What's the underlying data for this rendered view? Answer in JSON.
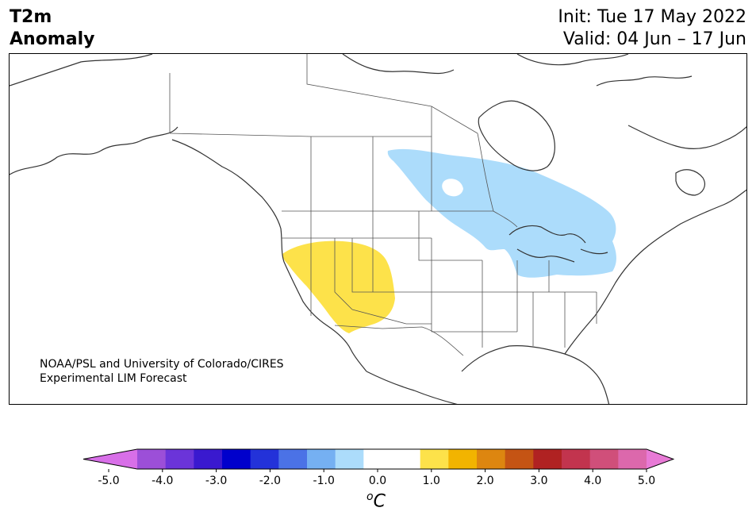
{
  "title": {
    "left_line1": "T2m",
    "left_line2": "Anomaly",
    "init": "Init: Tue 17 May 2022",
    "valid": "Valid: 04 Jun – 17 Jun"
  },
  "credit": {
    "line1": "NOAA/PSL and University of Colorado/CIRES",
    "line2": "Experimental LIM Forecast"
  },
  "colorbar": {
    "unit_super": "o",
    "unit_main": "C",
    "ticks": [
      "-5.0",
      "-4.0",
      "-3.0",
      "-2.0",
      "-1.0",
      "0.0",
      "1.0",
      "2.0",
      "3.0",
      "4.0",
      "5.0"
    ],
    "colors": [
      "#d86fe8",
      "#9c4fd8",
      "#6b34d9",
      "#3a19cf",
      "#0000cc",
      "#2332d9",
      "#4b72e6",
      "#75b0f2",
      "#acdcfb",
      "#ffffff",
      "#ffffff",
      "#fde24a",
      "#f2b400",
      "#dd8610",
      "#c55414",
      "#b02222",
      "#c2344e",
      "#d04f7a",
      "#dc68ac",
      "#e87ad6"
    ]
  },
  "map": {
    "region": "North America",
    "anomalies": [
      {
        "label": "cool",
        "color": "#acdcfb",
        "area": "Northern Plains to Great Lakes and Ontario"
      },
      {
        "label": "warm",
        "color": "#fde24a",
        "area": "Great Basin and Southwest"
      }
    ]
  }
}
